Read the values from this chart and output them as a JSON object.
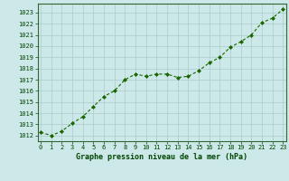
{
  "x": [
    0,
    1,
    2,
    3,
    4,
    5,
    6,
    7,
    8,
    9,
    10,
    11,
    12,
    13,
    14,
    15,
    16,
    17,
    18,
    19,
    20,
    21,
    22,
    23
  ],
  "y": [
    1012.3,
    1012.0,
    1012.4,
    1013.1,
    1013.7,
    1014.6,
    1015.5,
    1016.0,
    1017.0,
    1017.5,
    1017.3,
    1017.5,
    1017.5,
    1017.2,
    1017.3,
    1017.8,
    1018.5,
    1019.0,
    1019.9,
    1020.4,
    1021.0,
    1022.1,
    1022.5,
    1023.3
  ],
  "line_color": "#1a6600",
  "marker": "D",
  "marker_size": 2.0,
  "bg_color": "#cce8e8",
  "grid_color": "#aacccc",
  "xlabel": "Graphe pression niveau de la mer (hPa)",
  "xlabel_color": "#004400",
  "tick_color": "#004400",
  "axis_color": "#336633",
  "ylim": [
    1011.5,
    1023.8
  ],
  "yticks": [
    1012,
    1013,
    1014,
    1015,
    1016,
    1017,
    1018,
    1019,
    1020,
    1021,
    1022,
    1023
  ],
  "xticks": [
    0,
    1,
    2,
    3,
    4,
    5,
    6,
    7,
    8,
    9,
    10,
    11,
    12,
    13,
    14,
    15,
    16,
    17,
    18,
    19,
    20,
    21,
    22,
    23
  ],
  "xlim": [
    -0.3,
    23.3
  ],
  "tick_fontsize": 5.0,
  "xlabel_fontsize": 6.0
}
